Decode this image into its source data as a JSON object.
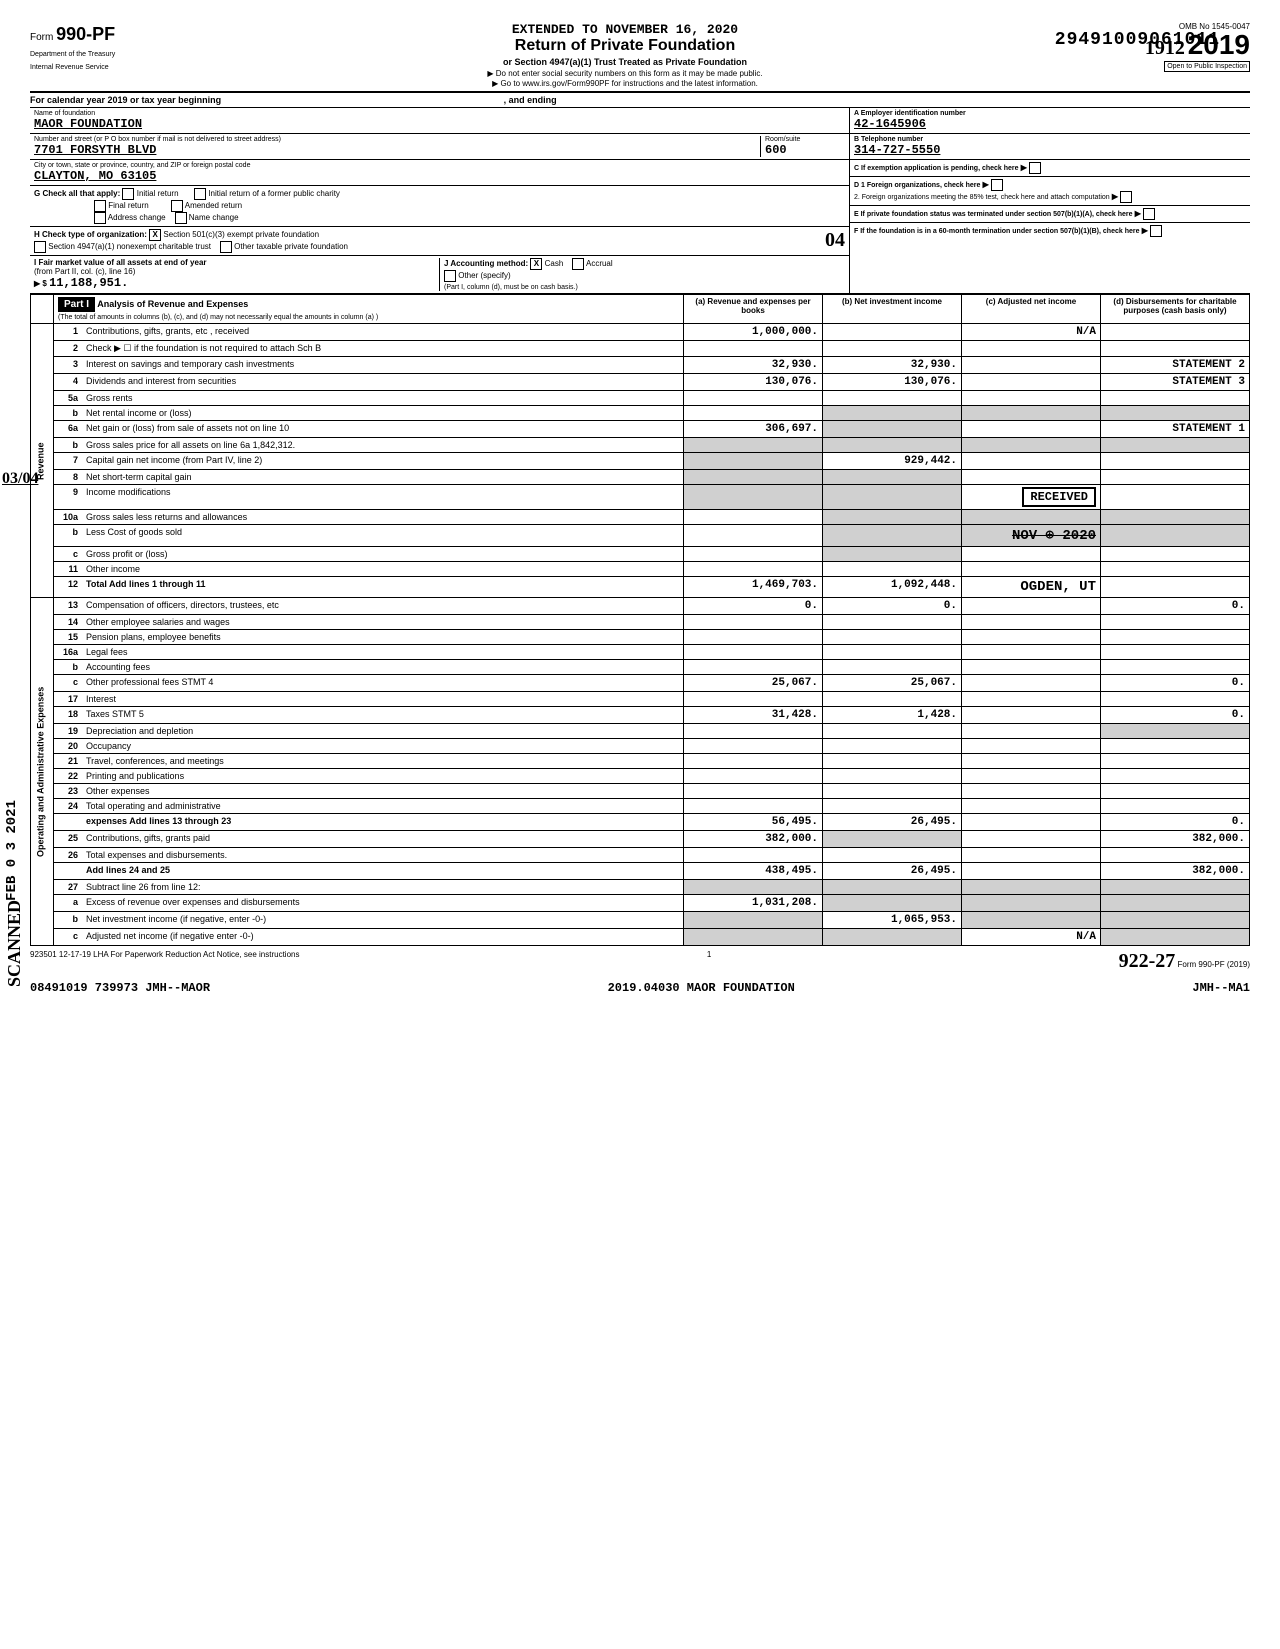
{
  "dln": "29491009061011",
  "extended_to": "EXTENDED TO NOVEMBER 16, 2020",
  "form": {
    "number": "990-PF",
    "prefix": "Form",
    "dept": "Department of the Treasury",
    "irs": "Internal Revenue Service"
  },
  "title": {
    "main": "Return of Private Foundation",
    "sub": "or Section 4947(a)(1) Trust Treated as Private Foundation",
    "warn": "▶ Do not enter social security numbers on this form as it may be made public.",
    "goto": "▶ Go to www.irs.gov/Form990PF for instructions and the latest information."
  },
  "year_box": {
    "omb": "OMB No 1545-0047",
    "year": "2019",
    "open": "Open to Public Inspection",
    "handwritten": "1912"
  },
  "cal_year": "For calendar year 2019 or tax year beginning",
  "and_ending": ", and ending",
  "foundation": {
    "name_label": "Name of foundation",
    "name": "MAOR FOUNDATION",
    "street_label": "Number and street (or P O  box number if mail is not delivered to street address)",
    "street": "7701 FORSYTH BLVD",
    "room_label": "Room/suite",
    "room": "600",
    "city_label": "City or town, state or province, country, and ZIP or foreign postal code",
    "city": "CLAYTON, MO   63105"
  },
  "ein": {
    "label": "A Employer identification number",
    "value": "42-1645906"
  },
  "phone": {
    "label": "B  Telephone number",
    "value": "314-727-5550"
  },
  "c_label": "C  If exemption application is pending, check here",
  "g_label": "G  Check all that apply:",
  "g_opts": {
    "initial": "Initial return",
    "initial_former": "Initial return of a former public charity",
    "final": "Final return",
    "amended": "Amended return",
    "address": "Address change",
    "name": "Name change"
  },
  "d1_label": "D  1  Foreign organizations, check here",
  "d2_label": "2.  Foreign organizations meeting the 85% test, check here and attach computation",
  "h_label": "H  Check type of organization:",
  "h_opts": {
    "501c3": "Section 501(c)(3) exempt private foundation",
    "4947": "Section 4947(a)(1) nonexempt charitable trust",
    "other": "Other taxable private foundation"
  },
  "h_handwritten": "04",
  "e_label": "E  If private foundation status was terminated under section 507(b)(1)(A), check here",
  "i_label": "I  Fair market value of all assets at end of year",
  "i_from": "(from Part II, col. (c), line 16)",
  "i_value": "11,188,951.",
  "j_label": "J  Accounting method:",
  "j_opts": {
    "cash": "Cash",
    "accrual": "Accrual",
    "other": "Other (specify)"
  },
  "j_note": "(Part I, column (d), must be on cash basis.)",
  "f_label": "F  If the foundation is in a 60-month termination under section 507(b)(1)(B), check here",
  "part1": {
    "label": "Part I",
    "title": "Analysis of Revenue and Expenses",
    "note": "(The total of amounts in columns (b), (c), and (d) may not necessarily equal the amounts in column (a) )",
    "col_a": "(a) Revenue and expenses per books",
    "col_b": "(b) Net investment income",
    "col_c": "(c) Adjusted net income",
    "col_d": "(d) Disbursements for charitable purposes (cash basis only)"
  },
  "side_revenue": "Revenue",
  "side_expenses": "Operating and Administrative Expenses",
  "margin_note": "03/04",
  "scanned": "SCANNED",
  "feb_stamp": "FEB 0 3 2021",
  "rows": [
    {
      "n": "1",
      "desc": "Contributions, gifts, grants, etc , received",
      "a": "1,000,000.",
      "b": "",
      "c": "N/A",
      "d": ""
    },
    {
      "n": "2",
      "desc": "Check ▶ ☐ if the foundation is not required to attach Sch  B",
      "a": "",
      "b": "",
      "c": "",
      "d": ""
    },
    {
      "n": "3",
      "desc": "Interest on savings and temporary cash investments",
      "a": "32,930.",
      "b": "32,930.",
      "c": "",
      "d": "STATEMENT 2"
    },
    {
      "n": "4",
      "desc": "Dividends and interest from securities",
      "a": "130,076.",
      "b": "130,076.",
      "c": "",
      "d": "STATEMENT 3"
    },
    {
      "n": "5a",
      "desc": "Gross rents",
      "a": "",
      "b": "",
      "c": "",
      "d": ""
    },
    {
      "n": "b",
      "desc": "Net rental income or (loss)",
      "a": "",
      "b": "",
      "c": "",
      "d": "",
      "shadeBCD": true
    },
    {
      "n": "6a",
      "desc": "Net gain or (loss) from sale of assets not on line 10",
      "a": "306,697.",
      "b": "",
      "c": "",
      "d": "STATEMENT 1",
      "shadeB": true
    },
    {
      "n": "b",
      "desc": "Gross sales price for all assets on line 6a      1,842,312.",
      "a": "",
      "b": "",
      "c": "",
      "d": "",
      "shadeABCD": true
    },
    {
      "n": "7",
      "desc": "Capital gain net income (from Part IV, line 2)",
      "a": "",
      "b": "929,442.",
      "c": "",
      "d": "",
      "shadeA": true
    },
    {
      "n": "8",
      "desc": "Net short-term capital gain",
      "a": "",
      "b": "",
      "c": "",
      "d": "",
      "shadeAB": true
    },
    {
      "n": "9",
      "desc": "Income modifications",
      "a": "",
      "b": "",
      "c": "",
      "d": "",
      "shadeAB": true,
      "received": "RECEIVED"
    },
    {
      "n": "10a",
      "desc": "Gross sales less returns and allowances",
      "a": "",
      "b": "",
      "c": "",
      "d": "",
      "shadeBCD": true
    },
    {
      "n": "b",
      "desc": "Less  Cost of goods sold",
      "a": "",
      "b": "",
      "c": "",
      "d": "",
      "shadeBCD": true,
      "nov": "NOV ⊕ 2020"
    },
    {
      "n": "c",
      "desc": "Gross profit or (loss)",
      "a": "",
      "b": "",
      "c": "",
      "d": "",
      "shadeB": true
    },
    {
      "n": "11",
      "desc": "Other income",
      "a": "",
      "b": "",
      "c": "",
      "d": ""
    },
    {
      "n": "12",
      "desc": "Total  Add lines 1 through 11",
      "a": "1,469,703.",
      "b": "1,092,448.",
      "c": "",
      "d": "",
      "bold": true,
      "ogden": "OGDEN, UT"
    },
    {
      "n": "13",
      "desc": "Compensation of officers, directors, trustees, etc",
      "a": "0.",
      "b": "0.",
      "c": "",
      "d": "0."
    },
    {
      "n": "14",
      "desc": "Other employee salaries and wages",
      "a": "",
      "b": "",
      "c": "",
      "d": ""
    },
    {
      "n": "15",
      "desc": "Pension plans, employee benefits",
      "a": "",
      "b": "",
      "c": "",
      "d": ""
    },
    {
      "n": "16a",
      "desc": "Legal fees",
      "a": "",
      "b": "",
      "c": "",
      "d": ""
    },
    {
      "n": "b",
      "desc": "Accounting fees",
      "a": "",
      "b": "",
      "c": "",
      "d": ""
    },
    {
      "n": "c",
      "desc": "Other professional fees          STMT 4",
      "a": "25,067.",
      "b": "25,067.",
      "c": "",
      "d": "0."
    },
    {
      "n": "17",
      "desc": "Interest",
      "a": "",
      "b": "",
      "c": "",
      "d": ""
    },
    {
      "n": "18",
      "desc": "Taxes                            STMT 5",
      "a": "31,428.",
      "b": "1,428.",
      "c": "",
      "d": "0."
    },
    {
      "n": "19",
      "desc": "Depreciation and depletion",
      "a": "",
      "b": "",
      "c": "",
      "d": "",
      "shadeD": true
    },
    {
      "n": "20",
      "desc": "Occupancy",
      "a": "",
      "b": "",
      "c": "",
      "d": ""
    },
    {
      "n": "21",
      "desc": "Travel, conferences, and meetings",
      "a": "",
      "b": "",
      "c": "",
      "d": ""
    },
    {
      "n": "22",
      "desc": "Printing and publications",
      "a": "",
      "b": "",
      "c": "",
      "d": ""
    },
    {
      "n": "23",
      "desc": "Other expenses",
      "a": "",
      "b": "",
      "c": "",
      "d": ""
    },
    {
      "n": "24",
      "desc": "Total operating and administrative",
      "a": "",
      "b": "",
      "c": "",
      "d": "",
      "noborder": true
    },
    {
      "n": "",
      "desc": "expenses  Add lines 13 through 23",
      "a": "56,495.",
      "b": "26,495.",
      "c": "",
      "d": "0.",
      "bold": true
    },
    {
      "n": "25",
      "desc": "Contributions, gifts, grants paid",
      "a": "382,000.",
      "b": "",
      "c": "",
      "d": "382,000.",
      "shadeB": true
    },
    {
      "n": "26",
      "desc": "Total expenses and disbursements.",
      "a": "",
      "b": "",
      "c": "",
      "d": "",
      "noborder": true
    },
    {
      "n": "",
      "desc": "Add lines 24 and 25",
      "a": "438,495.",
      "b": "26,495.",
      "c": "",
      "d": "382,000.",
      "bold": true
    },
    {
      "n": "27",
      "desc": "Subtract line 26 from line 12:",
      "a": "",
      "b": "",
      "c": "",
      "d": "",
      "shadeABCD": true
    },
    {
      "n": "a",
      "desc": "Excess of revenue over expenses and disbursements",
      "a": "1,031,208.",
      "b": "",
      "c": "",
      "d": "",
      "shadeBCD": true
    },
    {
      "n": "b",
      "desc": "Net investment income (if negative, enter -0-)",
      "a": "",
      "b": "1,065,953.",
      "c": "",
      "d": "",
      "shadeA": true,
      "shadeCD": true
    },
    {
      "n": "c",
      "desc": "Adjusted net income (if negative  enter -0-)",
      "a": "",
      "b": "",
      "c": "N/A",
      "d": "",
      "shadeAB": true,
      "shadeD": true
    }
  ],
  "footer": {
    "lha": "923501  12-17-19   LHA  For Paperwork Reduction Act Notice, see instructions",
    "page": "1",
    "form_ref": "Form 990-PF (2019)",
    "bottom_left": "08491019 739973 JMH--MAOR",
    "bottom_mid": "2019.04030 MAOR FOUNDATION",
    "bottom_right": "JMH--MA1",
    "signature": "922-27"
  }
}
